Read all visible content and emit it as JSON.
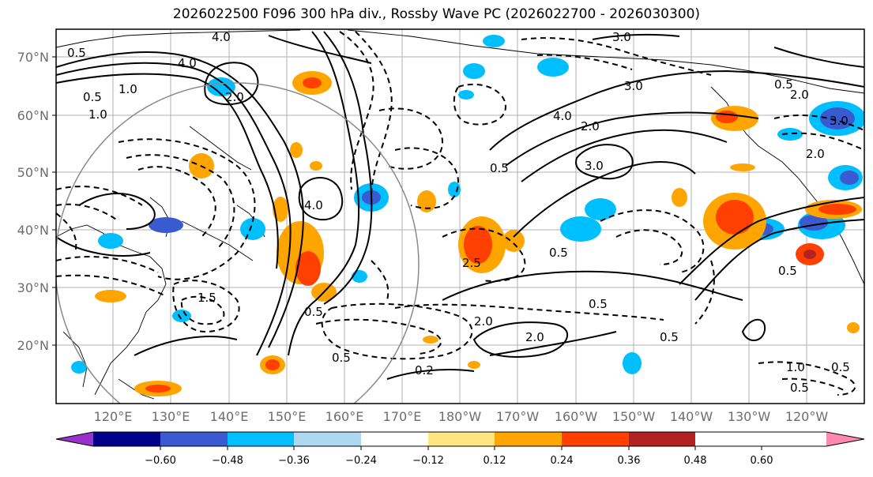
{
  "title": "2026022500 F096 300 hPa div., Rossby Wave PC (2026022700 - 2026030300)",
  "lat_ticks": [
    "70°N",
    "60°N",
    "50°N",
    "40°N",
    "30°N",
    "20°N"
  ],
  "lon_ticks": [
    "120°E",
    "130°E",
    "140°E",
    "150°E",
    "160°E",
    "170°E",
    "180°W",
    "170°W",
    "160°W",
    "150°W",
    "140°W",
    "130°W",
    "120°W"
  ],
  "colorbar": {
    "colors": [
      "#9932cc",
      "#00008b",
      "#3a5bd0",
      "#00bfff",
      "#add8f0",
      "#ffffff",
      "#ffe680",
      "#ffa500",
      "#ff4000",
      "#b22222",
      "#ff88b0"
    ],
    "tick_labels": [
      "−0.60",
      "−0.48",
      "−0.36",
      "−0.24",
      "−0.12",
      "0.12",
      "0.24",
      "0.36",
      "0.48",
      "0.60"
    ]
  },
  "contour_labels": [
    "4.0",
    "4.0",
    "0.5",
    "0.5",
    "1.0",
    "1.0",
    "2.0",
    "3.0",
    "3.0",
    "4.0",
    "2.0",
    "0.5",
    "0.5",
    "2.0",
    "3.0",
    "2.0",
    "4.0",
    "2.5",
    "0.5",
    "0.5",
    "0.5",
    "0.5",
    "2.0",
    "2.0",
    "1.5",
    "0.5",
    "1.0",
    "0.5",
    "0.2",
    "0.5",
    "3.0",
    "0.5"
  ]
}
